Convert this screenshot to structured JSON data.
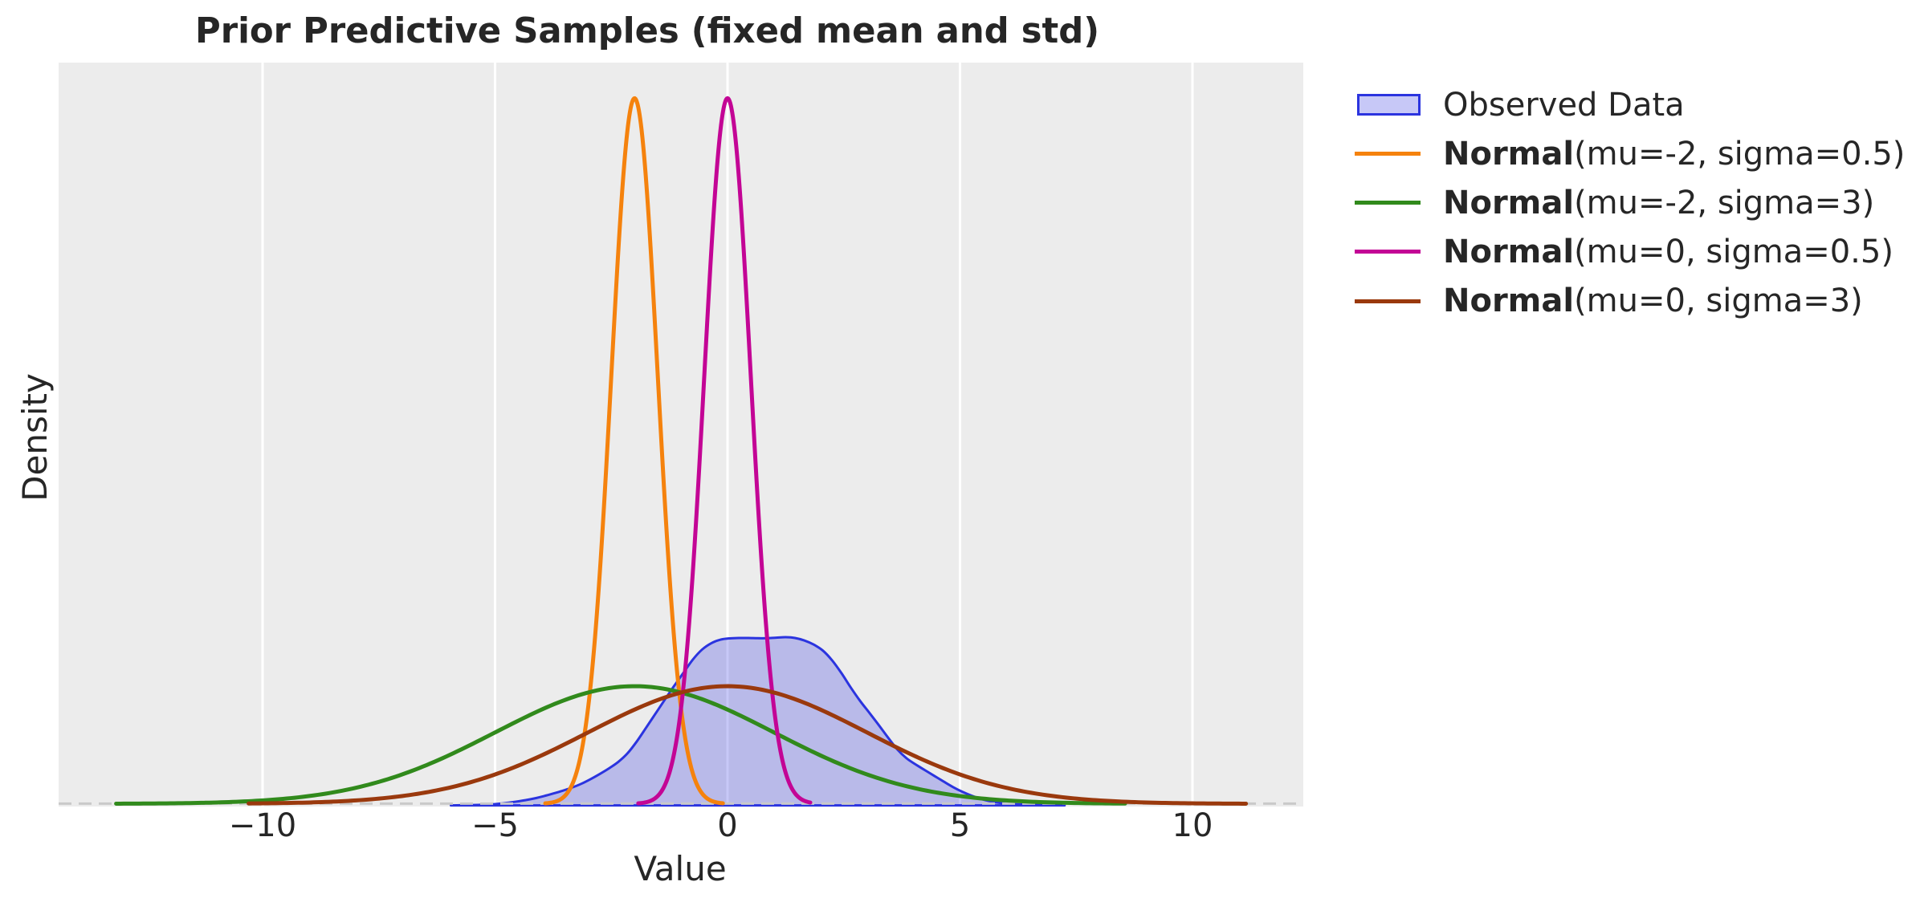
{
  "chart_data": {
    "type": "line",
    "title": "Prior Predictive Samples (fixed mean and std)",
    "xlabel": "Value",
    "ylabel": "Density",
    "x_ticks": [
      -10,
      -5,
      0,
      5,
      10
    ],
    "x_tick_labels": [
      "−10",
      "−5",
      "0",
      "5",
      "10"
    ],
    "xlim": [
      -14.39,
      12.38
    ],
    "ylim": [
      0,
      0.84
    ],
    "grid": "vertical-white-gridlines-on-gray",
    "legend_position": "outside-right-top",
    "background_color": "#ECECEC",
    "gridline_color": "#FFFFFF",
    "zero_line": {
      "style": "dashed",
      "color": "#C9C9C9",
      "y": 0
    },
    "observed": {
      "label": "Observed Data",
      "line_color": "#2B34DF",
      "fill_color": "rgba(47, 50, 225, 0.27)",
      "kde_points": [
        [
          -5.95,
          0.0
        ],
        [
          -5.75,
          0.00016
        ],
        [
          -5.55,
          0.00035
        ],
        [
          -5.35,
          0.00059
        ],
        [
          -5.15,
          0.00097
        ],
        [
          -4.95,
          0.00172
        ],
        [
          -4.75,
          0.00284
        ],
        [
          -4.55,
          0.00422
        ],
        [
          -4.35,
          0.00586
        ],
        [
          -4.15,
          0.00789
        ],
        [
          -3.95,
          0.01047
        ],
        [
          -3.75,
          0.01337
        ],
        [
          -3.55,
          0.01649
        ],
        [
          -3.35,
          0.02001
        ],
        [
          -3.15,
          0.02426
        ],
        [
          -2.95,
          0.02951
        ],
        [
          -2.75,
          0.03539
        ],
        [
          -2.55,
          0.04177
        ],
        [
          -2.35,
          0.04907
        ],
        [
          -2.15,
          0.05882
        ],
        [
          -1.95,
          0.07229
        ],
        [
          -1.75,
          0.0878
        ],
        [
          -1.55,
          0.10353
        ],
        [
          -1.35,
          0.11925
        ],
        [
          -1.15,
          0.13471
        ],
        [
          -0.95,
          0.14955
        ],
        [
          -0.75,
          0.16435
        ],
        [
          -0.55,
          0.17579
        ],
        [
          -0.35,
          0.18307
        ],
        [
          -0.15,
          0.1871
        ],
        [
          0.05,
          0.18858
        ],
        [
          0.25,
          0.18902
        ],
        [
          0.45,
          0.18896
        ],
        [
          0.65,
          0.1887
        ],
        [
          0.85,
          0.18874
        ],
        [
          1.05,
          0.18933
        ],
        [
          1.25,
          0.18985
        ],
        [
          1.45,
          0.18899
        ],
        [
          1.65,
          0.18623
        ],
        [
          1.85,
          0.18164
        ],
        [
          2.05,
          0.17478
        ],
        [
          2.25,
          0.16371
        ],
        [
          2.45,
          0.14934
        ],
        [
          2.65,
          0.1331
        ],
        [
          2.85,
          0.11803
        ],
        [
          3.05,
          0.10454
        ],
        [
          3.25,
          0.09088
        ],
        [
          3.45,
          0.07671
        ],
        [
          3.65,
          0.06328
        ],
        [
          3.85,
          0.0532
        ],
        [
          4.05,
          0.04608
        ],
        [
          4.25,
          0.03963
        ],
        [
          4.45,
          0.03324
        ],
        [
          4.65,
          0.02686
        ],
        [
          4.85,
          0.02068
        ],
        [
          5.05,
          0.01534
        ],
        [
          5.25,
          0.0109
        ],
        [
          5.45,
          0.00728
        ],
        [
          5.65,
          0.00464
        ],
        [
          5.85,
          0.00288
        ],
        [
          6.05,
          0.00179
        ],
        [
          6.25,
          0.00117
        ],
        [
          6.45,
          0.00079
        ],
        [
          6.65,
          0.00049
        ],
        [
          6.85,
          0.00026
        ],
        [
          7.05,
          0.00011
        ],
        [
          7.25,
          0.0
        ]
      ]
    },
    "normal_series": [
      {
        "label_bold": "Normal",
        "label_rest": "(mu=-2, sigma=0.5)",
        "mu": -2,
        "sigma": 0.5,
        "peak_density": 0.7979,
        "color": "#F5820D",
        "x_range": [
          -3.92,
          -0.1
        ]
      },
      {
        "label_bold": "Normal",
        "label_rest": "(mu=-2, sigma=3)",
        "mu": -2,
        "sigma": 3,
        "peak_density": 0.133,
        "color": "#318A1C",
        "x_range": [
          -13.15,
          8.55
        ]
      },
      {
        "label_bold": "Normal",
        "label_rest": "(mu=0, sigma=0.5)",
        "mu": 0,
        "sigma": 0.5,
        "peak_density": 0.7979,
        "color": "#C30595",
        "x_range": [
          -1.92,
          1.78
        ]
      },
      {
        "label_bold": "Normal",
        "label_rest": "(mu=0, sigma=3)",
        "mu": 0,
        "sigma": 3,
        "peak_density": 0.133,
        "color": "#9A390D",
        "x_range": [
          -10.3,
          11.15
        ]
      }
    ]
  }
}
